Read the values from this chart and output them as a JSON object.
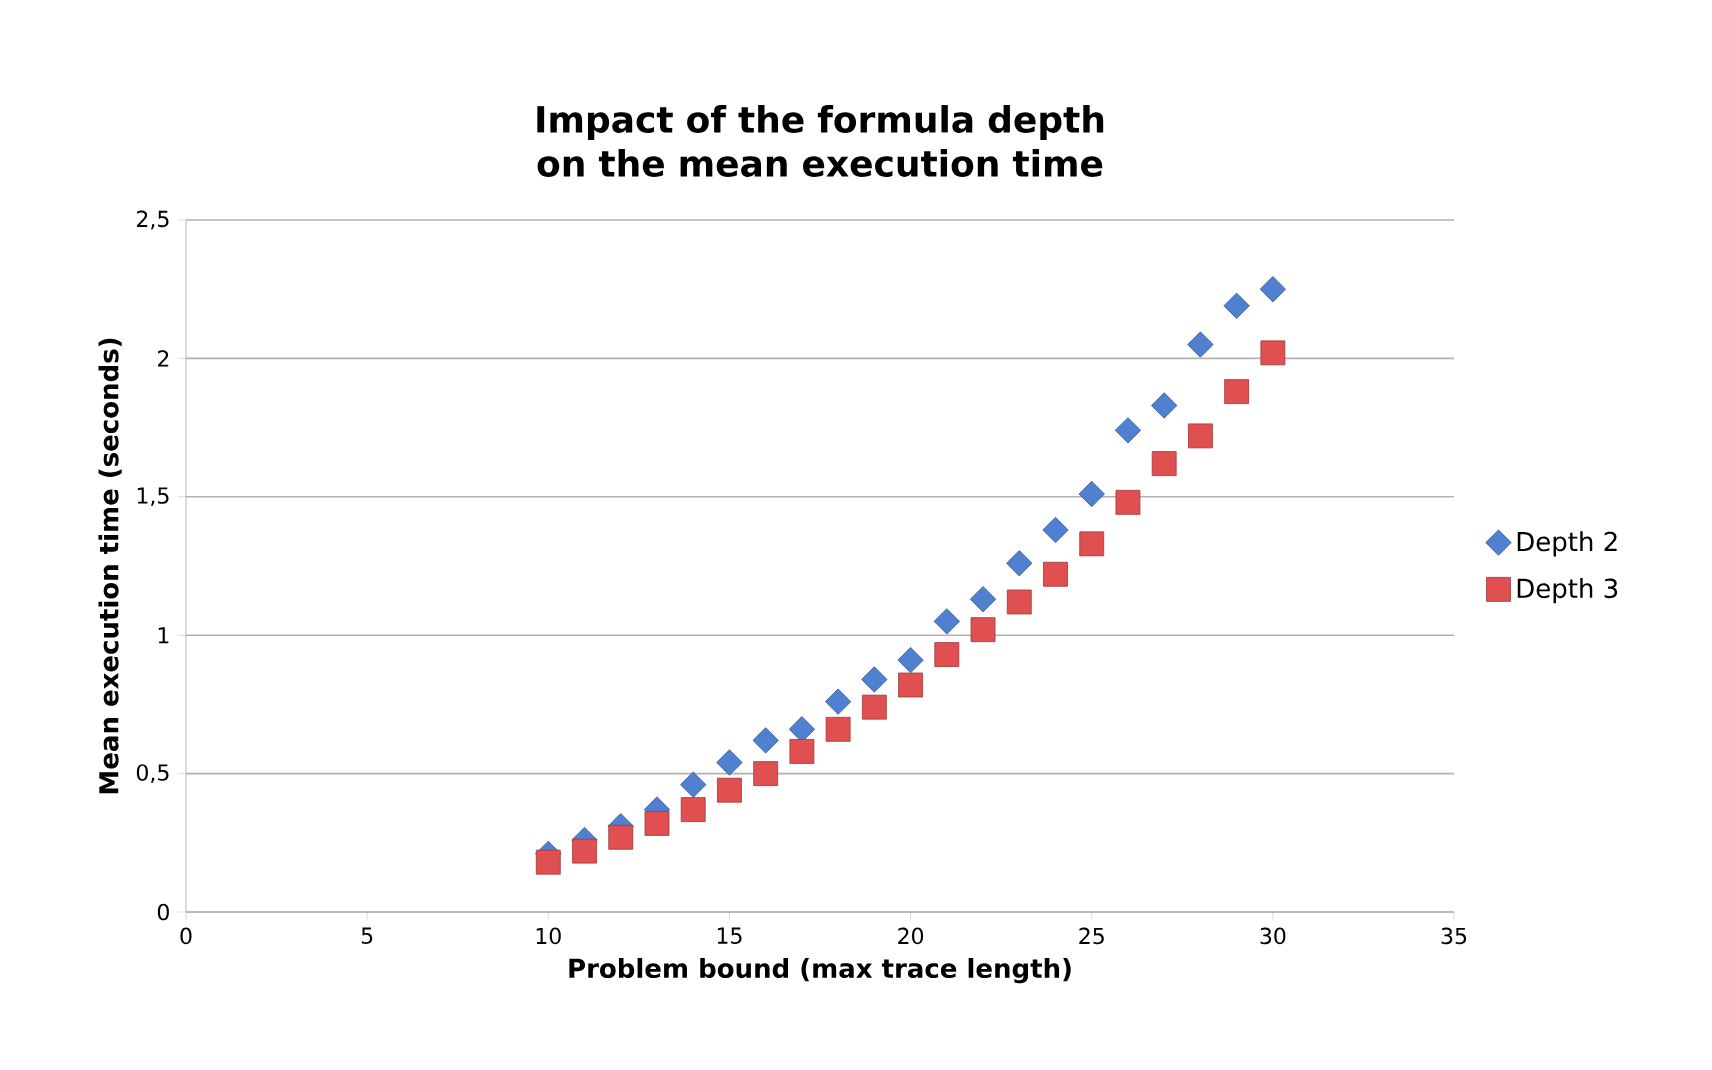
{
  "chart_data": {
    "type": "scatter",
    "title": "Impact of the formula depth on the mean execution time",
    "xlabel": "Problem bound (max trace length)",
    "ylabel": "Mean execution time (seconds)",
    "x": [
      10,
      11,
      12,
      13,
      14,
      15,
      16,
      17,
      18,
      19,
      20,
      21,
      22,
      23,
      24,
      25,
      26,
      27,
      28,
      29,
      30
    ],
    "series": [
      {
        "name": "Depth 2",
        "color": "#4f81d0",
        "marker": "diamond",
        "values": [
          0.21,
          0.26,
          0.31,
          0.37,
          0.46,
          0.54,
          0.62,
          0.66,
          0.76,
          0.84,
          0.91,
          1.05,
          1.13,
          1.26,
          1.38,
          1.51,
          1.74,
          1.83,
          2.05,
          2.19,
          2.25
        ]
      },
      {
        "name": "Depth 3",
        "color": "#e05050",
        "marker": "square",
        "values": [
          0.18,
          0.22,
          0.27,
          0.32,
          0.37,
          0.44,
          0.5,
          0.58,
          0.66,
          0.74,
          0.82,
          0.93,
          1.02,
          1.12,
          1.22,
          1.33,
          1.48,
          1.62,
          1.72,
          1.88,
          2.02
        ]
      }
    ],
    "xlim": [
      0,
      35
    ],
    "xticks": [
      0,
      5,
      10,
      15,
      20,
      25,
      30,
      35
    ],
    "ylim": [
      0,
      2.5
    ],
    "yticks": [
      0,
      {
        "value": 0.5,
        "label": "0,5"
      },
      1,
      {
        "value": 1.5,
        "label": "1,5"
      },
      2,
      {
        "value": 2.5,
        "label": "2,5"
      }
    ],
    "grid": "y",
    "legend": "right"
  }
}
